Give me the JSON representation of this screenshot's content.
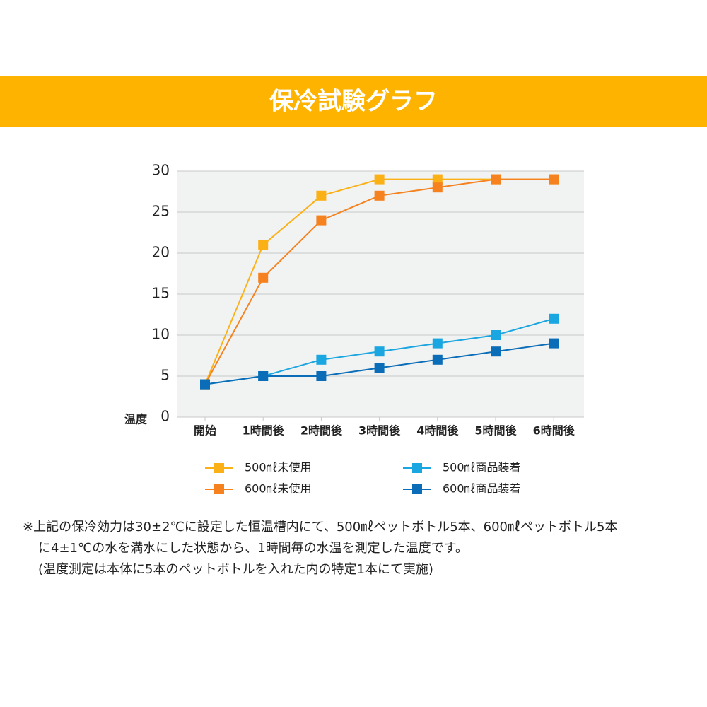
{
  "header": {
    "title": "保冷試験グラフ"
  },
  "chart_data": {
    "type": "line",
    "y_label": "温度",
    "categories": [
      "開始",
      "1時間後",
      "2時間後",
      "3時間後",
      "4時間後",
      "5時間後",
      "6時間後"
    ],
    "series": [
      {
        "name": "500㎖未使用",
        "color": "#fbb116",
        "values": [
          4,
          21,
          27,
          29,
          29,
          29,
          29
        ]
      },
      {
        "name": "600㎖未使用",
        "color": "#f5821f",
        "values": [
          4,
          17,
          24,
          27,
          28,
          29,
          29
        ]
      },
      {
        "name": "500㎖商品装着",
        "color": "#1aa6e0",
        "values": [
          4,
          5,
          7,
          8,
          9,
          10,
          12
        ]
      },
      {
        "name": "600㎖商品装着",
        "color": "#0b6db7",
        "values": [
          4,
          5,
          5,
          6,
          7,
          8,
          9
        ]
      }
    ],
    "ylim": [
      0,
      30
    ],
    "yticks": [
      0,
      5,
      10,
      15,
      20,
      25,
      30
    ],
    "grid": true,
    "legend": "bottom"
  },
  "notes": [
    "※上記の保冷効力は30±2℃に設定した恒温槽内にて、500㎖ペットボトル5本、600㎖ペットボトル5本",
    "に4±1℃の水を満水にした状態から、1時間毎の水温を測定した温度です。",
    "(温度測定は本体に5本のペットボトルを入れた内の特定1本にて実施)"
  ]
}
